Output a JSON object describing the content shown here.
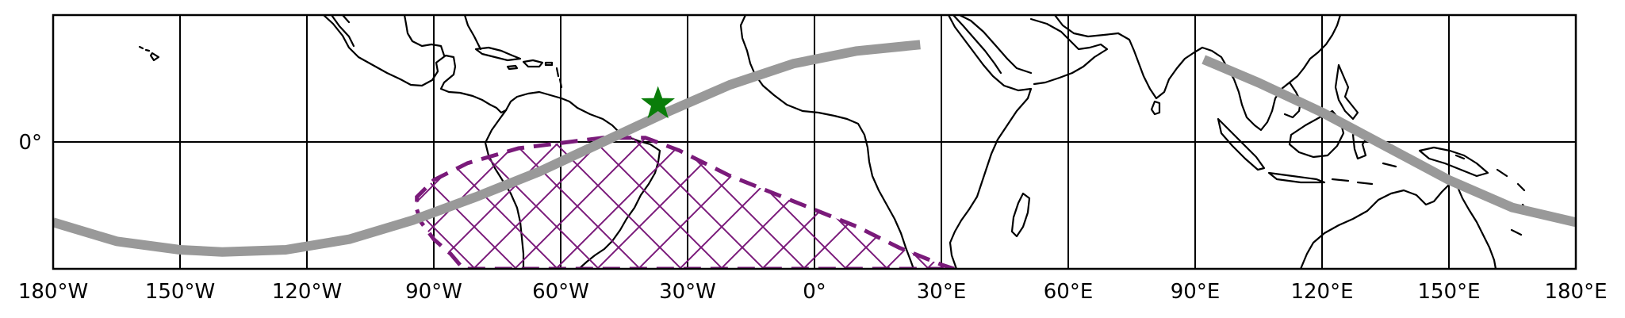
{
  "map": {
    "projection": "PlateCarree",
    "extent": {
      "lon": [
        -180,
        180
      ],
      "lat": [
        -30,
        30
      ]
    },
    "x_ticks": [
      {
        "lon": -180,
        "label": "180°W"
      },
      {
        "lon": -150,
        "label": "150°W"
      },
      {
        "lon": -120,
        "label": "120°W"
      },
      {
        "lon": -90,
        "label": "90°W"
      },
      {
        "lon": -60,
        "label": "60°W"
      },
      {
        "lon": -30,
        "label": "30°W"
      },
      {
        "lon": 0,
        "label": "0°"
      },
      {
        "lon": 30,
        "label": "30°E"
      },
      {
        "lon": 60,
        "label": "60°E"
      },
      {
        "lon": 90,
        "label": "90°E"
      },
      {
        "lon": 120,
        "label": "120°E"
      },
      {
        "lon": 150,
        "label": "150°E"
      },
      {
        "lon": 180,
        "label": "180°E"
      }
    ],
    "y_ticks": [
      {
        "lat": 0,
        "label": "0°"
      }
    ],
    "gridlines": true,
    "coastlines": true,
    "colors": {
      "track": "#999999",
      "region": "#7a1a7a",
      "marker": "#0a7d0a",
      "coast": "#000000",
      "grid": "#000000"
    },
    "ground_track": {
      "segments": [
        [
          [
            -180,
            -19
          ],
          [
            -165,
            -23.5
          ],
          [
            -150,
            -25.5
          ],
          [
            -140,
            -26
          ],
          [
            -125,
            -25.5
          ],
          [
            -110,
            -23
          ],
          [
            -95,
            -18.5
          ],
          [
            -80,
            -13
          ],
          [
            -65,
            -7
          ],
          [
            -50,
            0
          ],
          [
            -35,
            7
          ],
          [
            -20,
            13.5
          ],
          [
            -5,
            18.5
          ],
          [
            10,
            21.5
          ],
          [
            25,
            23
          ]
        ],
        [
          [
            92,
            19.5
          ],
          [
            105,
            14
          ],
          [
            120,
            7
          ],
          [
            135,
            -1
          ],
          [
            150,
            -9
          ],
          [
            165,
            -15.5
          ],
          [
            180,
            -19
          ]
        ]
      ]
    },
    "marker": {
      "lon": -37,
      "lat": 9,
      "shape": "star"
    },
    "coverage_region": {
      "pattern": "crosshatch",
      "boundary": [
        [
          -94,
          -16
        ],
        [
          -93,
          -19
        ],
        [
          -90,
          -23
        ],
        [
          -86,
          -26.5
        ],
        [
          -83,
          -30
        ],
        [
          33,
          -30
        ],
        [
          30,
          -29
        ],
        [
          20,
          -25
        ],
        [
          10,
          -20
        ],
        [
          -5,
          -14
        ],
        [
          -20,
          -8
        ],
        [
          -32,
          -2
        ],
        [
          -40,
          1
        ],
        [
          -50,
          1
        ],
        [
          -58,
          0
        ],
        [
          -70,
          -1.5
        ],
        [
          -82,
          -5
        ],
        [
          -90,
          -9
        ],
        [
          -94,
          -13
        ]
      ]
    }
  }
}
